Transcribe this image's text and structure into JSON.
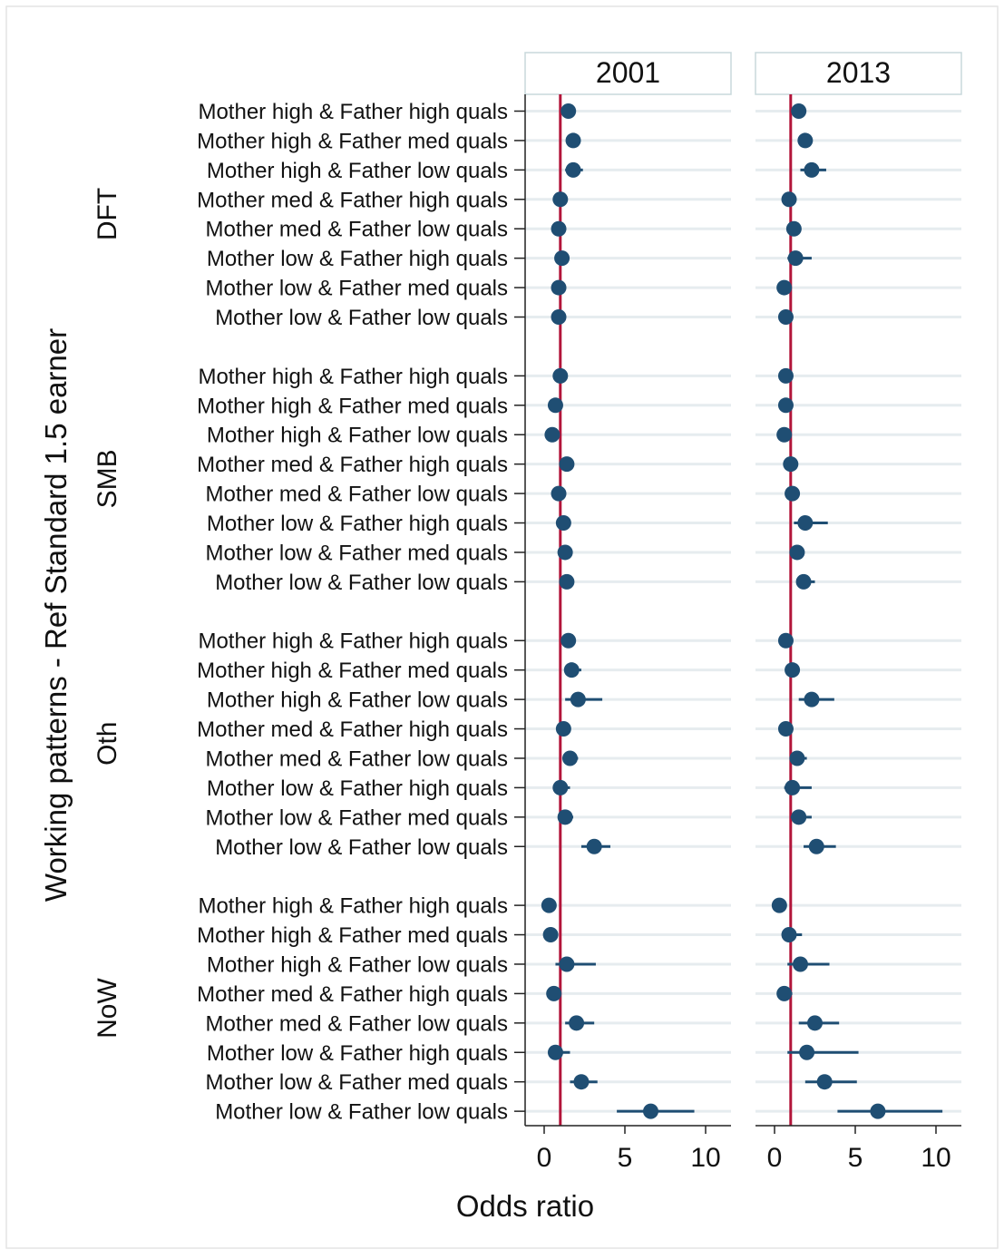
{
  "chart_data": {
    "type": "scatter",
    "subtype": "forest-plot with confidence intervals, faceted by year",
    "ylabel": "Working patterns - Ref Standard 1.5 earner",
    "xlabel": "Odds ratio",
    "xlim": [
      -1,
      11.5
    ],
    "xticks": [
      0,
      5,
      10
    ],
    "reference_line": 1,
    "colors": {
      "marker": "#1f4e73",
      "ci": "#1f4e73",
      "ref_line": "#b2153a",
      "grid": "#e6ecef",
      "strip_fill": "#eaf2f3",
      "strip_border": "#c8d8dc"
    },
    "grid": true,
    "top_fragment": "(",
    "panels": [
      "2001",
      "2013"
    ],
    "groups": [
      {
        "name": "DFT",
        "rows": [
          {
            "label": "Mother high & Father high quals",
            "est": [
              1.5,
              1.5
            ],
            "ci": [
              [
                1.2,
                1.8
              ],
              [
                1.3,
                1.8
              ]
            ]
          },
          {
            "label": "Mother high & Father med quals",
            "est": [
              1.8,
              1.9
            ],
            "ci": [
              [
                1.5,
                2.1
              ],
              [
                1.6,
                2.2
              ]
            ]
          },
          {
            "label": "Mother high & Father low quals",
            "est": [
              1.8,
              2.3
            ],
            "ci": [
              [
                1.3,
                2.4
              ],
              [
                1.6,
                3.2
              ]
            ]
          },
          {
            "label": "Mother med & Father high quals",
            "est": [
              1.0,
              0.9
            ],
            "ci": [
              [
                0.8,
                1.2
              ],
              [
                0.7,
                1.1
              ]
            ]
          },
          {
            "label": "Mother med & Father low quals",
            "est": [
              0.9,
              1.2
            ],
            "ci": [
              [
                0.7,
                1.2
              ],
              [
                0.9,
                1.5
              ]
            ]
          },
          {
            "label": "Mother low & Father high quals",
            "est": [
              1.1,
              1.3
            ],
            "ci": [
              [
                0.8,
                1.4
              ],
              [
                0.8,
                2.3
              ]
            ]
          },
          {
            "label": "Mother low & Father med quals",
            "est": [
              0.9,
              0.6
            ],
            "ci": [
              [
                0.7,
                1.1
              ],
              [
                0.4,
                0.8
              ]
            ]
          },
          {
            "label": "Mother low & Father low quals",
            "est": [
              0.9,
              0.7
            ],
            "ci": [
              [
                0.7,
                1.1
              ],
              [
                0.5,
                0.9
              ]
            ]
          }
        ]
      },
      {
        "name": "SMB",
        "rows": [
          {
            "label": "Mother high & Father high quals",
            "est": [
              1.0,
              0.7
            ],
            "ci": [
              [
                0.8,
                1.2
              ],
              [
                0.5,
                0.9
              ]
            ]
          },
          {
            "label": "Mother high & Father med quals",
            "est": [
              0.7,
              0.7
            ],
            "ci": [
              [
                0.5,
                0.9
              ],
              [
                0.5,
                0.9
              ]
            ]
          },
          {
            "label": "Mother high & Father low quals",
            "est": [
              0.5,
              0.6
            ],
            "ci": [
              [
                0.3,
                0.7
              ],
              [
                0.4,
                0.8
              ]
            ]
          },
          {
            "label": "Mother med & Father high quals",
            "est": [
              1.4,
              1.0
            ],
            "ci": [
              [
                1.1,
                1.7
              ],
              [
                0.8,
                1.2
              ]
            ]
          },
          {
            "label": "Mother med & Father low quals",
            "est": [
              0.9,
              1.1
            ],
            "ci": [
              [
                0.7,
                1.1
              ],
              [
                0.9,
                1.4
              ]
            ]
          },
          {
            "label": "Mother low & Father high quals",
            "est": [
              1.2,
              1.9
            ],
            "ci": [
              [
                0.9,
                1.5
              ],
              [
                1.2,
                3.3
              ]
            ]
          },
          {
            "label": "Mother low & Father med quals",
            "est": [
              1.3,
              1.4
            ],
            "ci": [
              [
                1.1,
                1.6
              ],
              [
                1.1,
                1.7
              ]
            ]
          },
          {
            "label": "Mother low & Father low quals",
            "est": [
              1.4,
              1.8
            ],
            "ci": [
              [
                1.1,
                1.7
              ],
              [
                1.4,
                2.5
              ]
            ]
          }
        ]
      },
      {
        "name": "Oth",
        "rows": [
          {
            "label": "Mother high & Father high quals",
            "est": [
              1.5,
              0.7
            ],
            "ci": [
              [
                1.2,
                1.9
              ],
              [
                0.5,
                1.0
              ]
            ]
          },
          {
            "label": "Mother high & Father med quals",
            "est": [
              1.7,
              1.1
            ],
            "ci": [
              [
                1.3,
                2.3
              ],
              [
                0.8,
                1.4
              ]
            ]
          },
          {
            "label": "Mother high & Father low quals",
            "est": [
              2.1,
              2.3
            ],
            "ci": [
              [
                1.3,
                3.6
              ],
              [
                1.5,
                3.7
              ]
            ]
          },
          {
            "label": "Mother med & Father high quals",
            "est": [
              1.2,
              0.7
            ],
            "ci": [
              [
                0.9,
                1.6
              ],
              [
                0.5,
                1.0
              ]
            ]
          },
          {
            "label": "Mother med & Father low quals",
            "est": [
              1.6,
              1.4
            ],
            "ci": [
              [
                1.2,
                2.1
              ],
              [
                1.0,
                2.0
              ]
            ]
          },
          {
            "label": "Mother low & Father high quals",
            "est": [
              1.0,
              1.1
            ],
            "ci": [
              [
                0.7,
                1.6
              ],
              [
                0.6,
                2.3
              ]
            ]
          },
          {
            "label": "Mother low & Father med quals",
            "est": [
              1.3,
              1.5
            ],
            "ci": [
              [
                1.0,
                1.8
              ],
              [
                1.0,
                2.3
              ]
            ]
          },
          {
            "label": "Mother low & Father low quals",
            "est": [
              3.1,
              2.6
            ],
            "ci": [
              [
                2.3,
                4.1
              ],
              [
                1.8,
                3.8
              ]
            ]
          }
        ]
      },
      {
        "name": "NoW",
        "rows": [
          {
            "label": "Mother high & Father high quals",
            "est": [
              0.3,
              0.3
            ],
            "ci": [
              [
                0.2,
                0.5
              ],
              [
                0.2,
                0.5
              ]
            ]
          },
          {
            "label": "Mother high & Father med quals",
            "est": [
              0.4,
              0.9
            ],
            "ci": [
              [
                0.2,
                0.6
              ],
              [
                0.5,
                1.7
              ]
            ]
          },
          {
            "label": "Mother high & Father low quals",
            "est": [
              1.4,
              1.6
            ],
            "ci": [
              [
                0.7,
                3.2
              ],
              [
                0.8,
                3.4
              ]
            ]
          },
          {
            "label": "Mother med & Father high quals",
            "est": [
              0.6,
              0.6
            ],
            "ci": [
              [
                0.4,
                0.9
              ],
              [
                0.4,
                1.1
              ]
            ]
          },
          {
            "label": "Mother med & Father low quals",
            "est": [
              2.0,
              2.5
            ],
            "ci": [
              [
                1.3,
                3.1
              ],
              [
                1.5,
                4.0
              ]
            ]
          },
          {
            "label": "Mother low & Father high quals",
            "est": [
              0.7,
              2.0
            ],
            "ci": [
              [
                0.4,
                1.6
              ],
              [
                0.8,
                5.2
              ]
            ]
          },
          {
            "label": "Mother low & Father med quals",
            "est": [
              2.3,
              3.1
            ],
            "ci": [
              [
                1.6,
                3.3
              ],
              [
                1.9,
                5.1
              ]
            ]
          },
          {
            "label": "Mother low & Father low quals",
            "est": [
              6.6,
              6.4
            ],
            "ci": [
              [
                4.5,
                9.3
              ],
              [
                3.9,
                10.4
              ]
            ]
          }
        ]
      }
    ]
  }
}
